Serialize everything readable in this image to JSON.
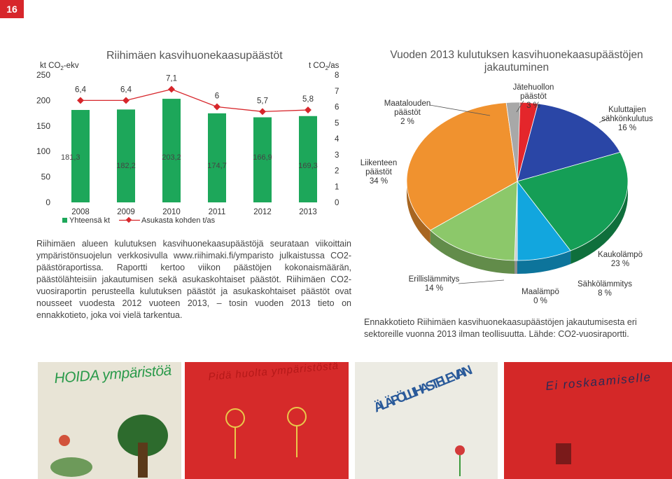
{
  "page": {
    "number": "16"
  },
  "chart_data": [
    {
      "type": "bar",
      "title": "Riihimäen kasvihuonekaasupäästöt",
      "left_axis_label": "kt CO2-ekv",
      "right_axis_label": "t CO2/as",
      "categories": [
        "2008",
        "2009",
        "2010",
        "2011",
        "2012",
        "2013"
      ],
      "series": [
        {
          "name": "Yhteensä kt",
          "values": [
            181.3,
            182.2,
            203.2,
            174.7,
            166.9,
            169.3
          ],
          "labels": [
            "181,3",
            "182,2",
            "203,2",
            "174,7",
            "166,9",
            "169,3"
          ],
          "color": "#1da75a"
        },
        {
          "name": "Asukasta kohden t/as",
          "values": [
            6.4,
            6.4,
            7.1,
            6.0,
            5.7,
            5.8
          ],
          "labels": [
            "6,4",
            "6,4",
            "7,1",
            "6",
            "5,7",
            "5,8"
          ],
          "color": "#d7262b"
        }
      ],
      "ylim_left": [
        0,
        250
      ],
      "ylim_right": [
        0,
        8
      ],
      "left_ticks": [
        "0",
        "50",
        "100",
        "150",
        "200",
        "250"
      ],
      "right_ticks": [
        "0",
        "1",
        "2",
        "3",
        "4",
        "5",
        "6",
        "7",
        "8"
      ]
    },
    {
      "type": "pie",
      "title_lines": [
        "Vuoden 2013 kulutuksen kasvihuonekaasupäästöjen",
        "jakautuminen"
      ],
      "slices": [
        {
          "lines": [
            "Jätehuollon",
            "päästöt",
            "3 %"
          ],
          "value": 3,
          "color": "#e4262b"
        },
        {
          "lines": [
            "Kuluttajien",
            "sähkönkulutus",
            "16 %"
          ],
          "value": 16,
          "color": "#2a46a6"
        },
        {
          "lines": [
            "Kaukolämpö",
            "23 %"
          ],
          "value": 23,
          "color": "#159e56"
        },
        {
          "lines": [
            "Sähkölämmitys",
            "8 %"
          ],
          "value": 8,
          "color": "#12a6de"
        },
        {
          "lines": [
            "Maalämpö",
            "0 %"
          ],
          "value": 0,
          "color": "#cccccc"
        },
        {
          "lines": [
            "Erillislämmitys",
            "14 %"
          ],
          "value": 14,
          "color": "#8cc86a"
        },
        {
          "lines": [
            "Liikenteen",
            "päästöt",
            "34 %"
          ],
          "value": 34,
          "color": "#f0922f"
        },
        {
          "lines": [
            "Maatalouden",
            "päästöt",
            "2 %"
          ],
          "value": 2,
          "color": "#a8a8a8"
        }
      ]
    }
  ],
  "article": {
    "body": "Riihimäen alueen kulutuksen kasvihuonekaasupäästöjä seurataan viikoittain ympäristönsuojelun verkkosivulla www.riihimaki.fi/ymparisto julkaistussa CO2-päästöraportissa. Raportti kertoo viikon päästöjen kokonaismäärän, päästölähteisiin jakautumisen sekä asukaskohtaiset päästöt. Riihimäen CO2-vuosiraportin perusteella kulutuksen päästöt ja asukaskohtaiset päästöt ovat nousseet vuodesta 2012 vuoteen 2013, – tosin vuoden 2013 tieto on ennakkotieto, joka voi vielä tarkentua.",
    "caption": "Ennakkotieto Riihimäen kasvihuonekaasupäästöjen jakautumisesta eri sektoreille vuonna 2013 ilman teollisuutta. Lähde: CO2-vuosiraportti."
  },
  "photos": [
    {
      "handwriting": "HOIDA ympäristöä",
      "background": "#e8e4d6",
      "ink": "#2a9a4a"
    },
    {
      "handwriting": "Pidä huolta ympäristöstä",
      "background": "#d62a2a",
      "ink": "#b41818"
    },
    {
      "handwriting": "ÄLÄ PÖLLI IHASTELE VAIN",
      "background": "#ecebe3",
      "ink": "#2a5a9a"
    },
    {
      "handwriting": "Ei roskaamiselle",
      "background": "#d42828",
      "ink": "#2a2a55"
    }
  ]
}
